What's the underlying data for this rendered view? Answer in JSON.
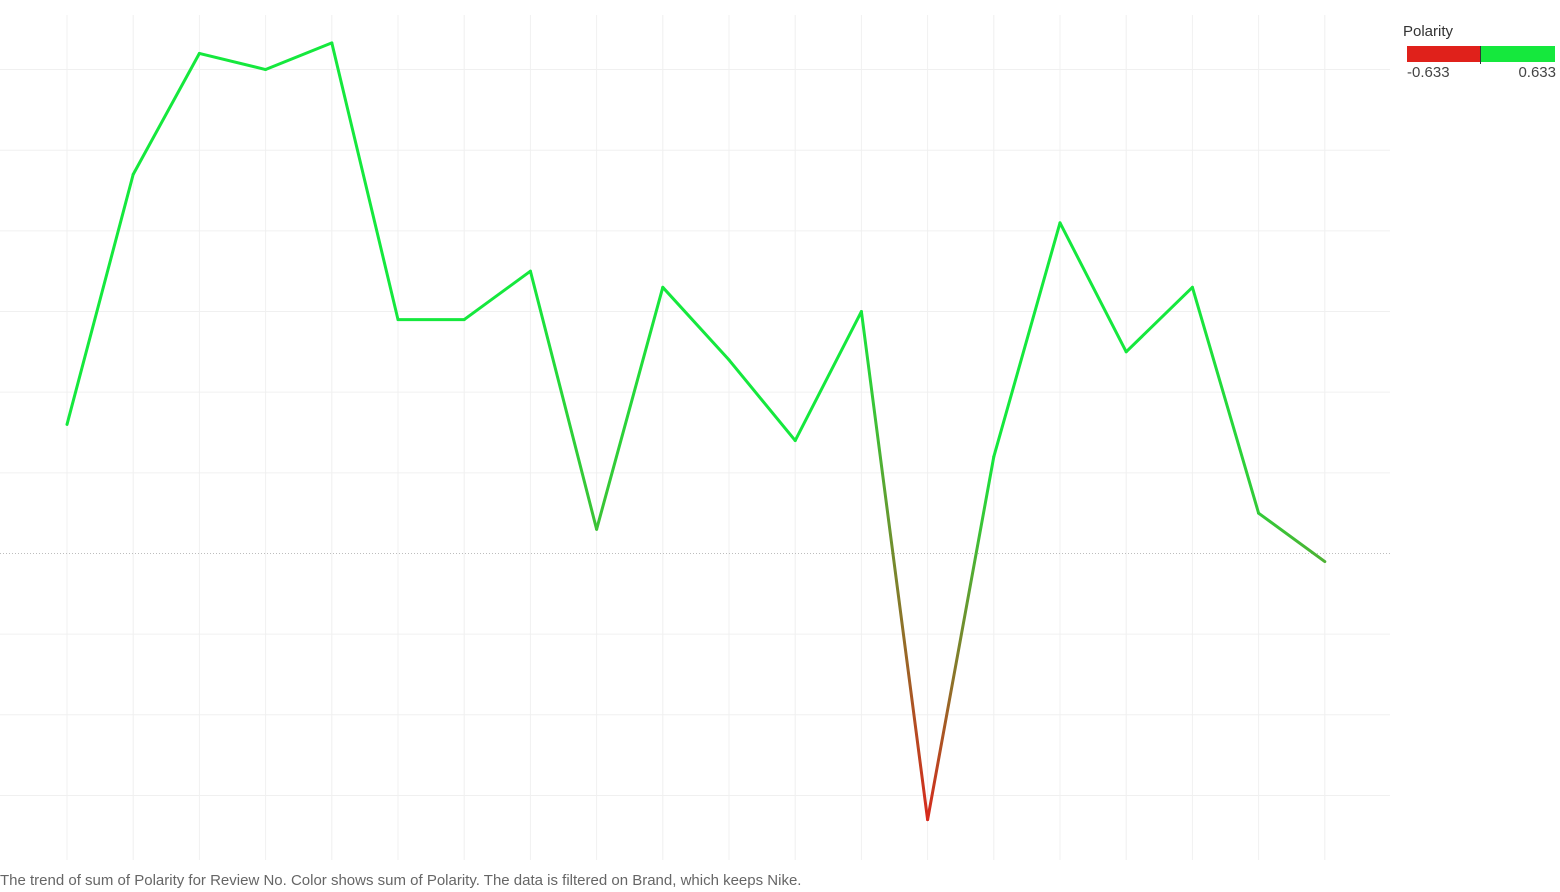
{
  "chart_data": {
    "type": "line",
    "title": "",
    "xlabel": "Review No",
    "ylabel": "Polarity",
    "grid": true,
    "x": [
      1,
      2,
      3,
      4,
      5,
      6,
      7,
      8,
      9,
      10,
      11,
      12,
      13,
      14,
      15,
      16,
      17,
      18,
      19,
      20
    ],
    "series": [
      {
        "name": "Polarity",
        "values": [
          0.16,
          0.47,
          0.62,
          0.6,
          0.633,
          0.29,
          0.29,
          0.35,
          0.03,
          0.33,
          0.24,
          0.14,
          0.3,
          -0.33,
          0.12,
          0.41,
          0.25,
          0.33,
          0.05,
          -0.01
        ]
      }
    ],
    "ylim": [
      -0.38,
      0.68
    ],
    "zero_line": 0,
    "color_scale": {
      "min": -0.633,
      "max": 0.633,
      "negative_color": "#e0211b",
      "positive_color": "#15e83d"
    }
  },
  "legend": {
    "title": "Polarity",
    "min_label": "-0.633",
    "max_label": "0.633",
    "placement": "top-right"
  },
  "caption": "The trend of sum of Polarity for Review No.  Color shows sum of Polarity. The data is filtered on Brand, which keeps Nike."
}
